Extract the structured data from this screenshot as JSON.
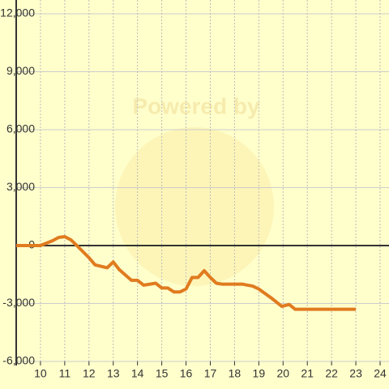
{
  "chart_data": {
    "type": "line",
    "watermark": "Powered by",
    "x": [
      9,
      10,
      10.5,
      10.75,
      11,
      11.25,
      11.5,
      12,
      12.25,
      12.75,
      13,
      13.25,
      13.75,
      14,
      14.25,
      14.75,
      15,
      15.25,
      15.5,
      15.75,
      16,
      16.25,
      16.5,
      16.75,
      17,
      17.25,
      17.5,
      17.75,
      18.33,
      18.75,
      19,
      19.5,
      19.95,
      20.25,
      20.5,
      23
    ],
    "series": [
      {
        "color": "#e07b1f",
        "values": [
          0,
          0,
          250,
          420,
          460,
          300,
          0,
          -630,
          -1000,
          -1150,
          -850,
          -1250,
          -1800,
          -1800,
          -2050,
          -1950,
          -2200,
          -2200,
          -2400,
          -2400,
          -2250,
          -1650,
          -1650,
          -1300,
          -1650,
          -1950,
          -2000,
          -2000,
          -2000,
          -2100,
          -2250,
          -2700,
          -3150,
          -3050,
          -3300,
          -3300
        ]
      }
    ],
    "xlim": [
      9,
      24.3
    ],
    "xticks": [
      10,
      11,
      12,
      13,
      14,
      15,
      16,
      17,
      18,
      19,
      20,
      21,
      22,
      23,
      24
    ],
    "ylim": [
      -6000,
      12000
    ],
    "yticks": [
      {
        "value": -6000,
        "label": "-6,000"
      },
      {
        "value": -3000,
        "label": "-3,000"
      },
      0,
      {
        "value": 3000,
        "label": "3,000"
      },
      {
        "value": 6000,
        "label": "6,000"
      },
      {
        "value": 9000,
        "label": "9,000"
      },
      {
        "value": 12000,
        "label": "12,000"
      }
    ],
    "grid": true
  }
}
